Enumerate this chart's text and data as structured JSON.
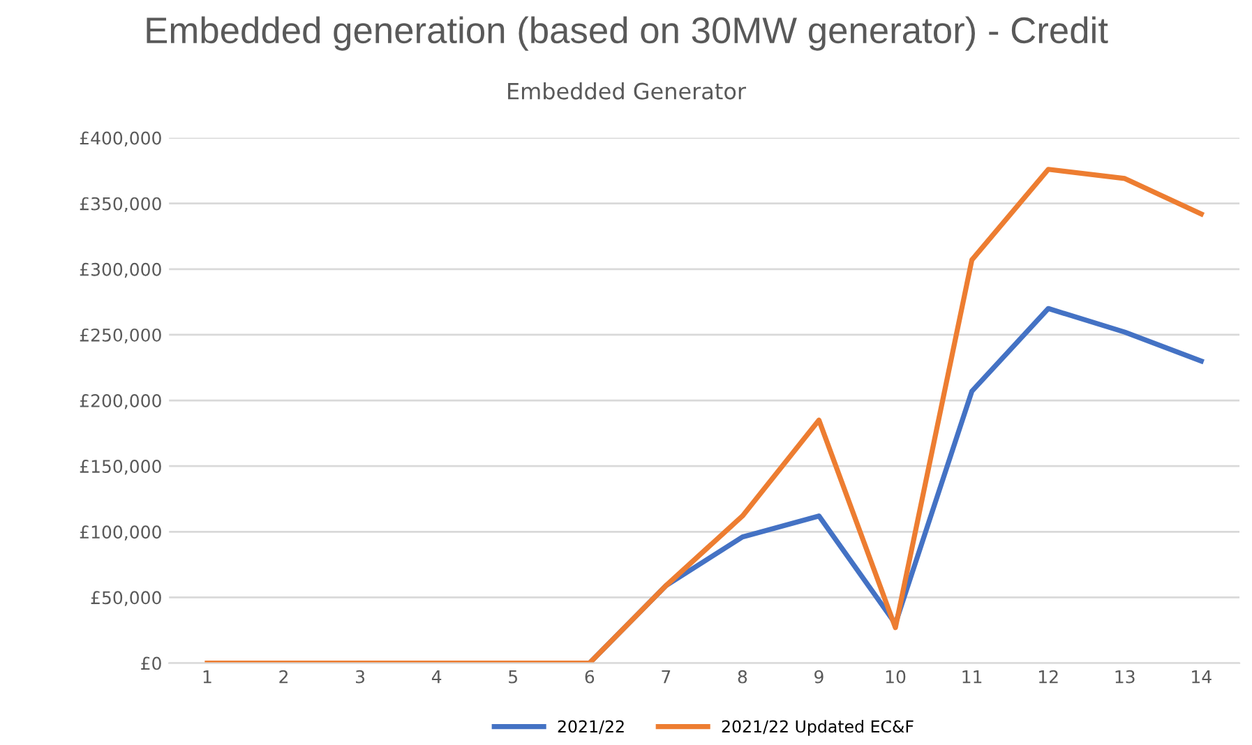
{
  "chart_data": {
    "type": "line",
    "title": "Embedded generation (based on 30MW generator) - Credit",
    "subtitle": "Embedded Generator",
    "categories": [
      "1",
      "2",
      "3",
      "4",
      "5",
      "6",
      "7",
      "8",
      "9",
      "10",
      "11",
      "12",
      "13",
      "14"
    ],
    "series": [
      {
        "name": "2021/22",
        "color": "#4472c4",
        "values": [
          null,
          null,
          null,
          null,
          null,
          0,
          59000,
          96000,
          112000,
          30000,
          207000,
          270000,
          252000,
          230000
        ]
      },
      {
        "name": "2021/22 Updated EC&F",
        "color": "#ed7d31",
        "values": [
          0,
          0,
          0,
          0,
          0,
          0,
          59000,
          112000,
          185000,
          27000,
          307000,
          376000,
          369000,
          342000
        ]
      }
    ],
    "ylim": [
      0,
      400000
    ],
    "yticks": [
      {
        "value": 0,
        "label": "£0"
      },
      {
        "value": 50000,
        "label": "£50,000"
      },
      {
        "value": 100000,
        "label": "£100,000"
      },
      {
        "value": 150000,
        "label": "£150,000"
      },
      {
        "value": 200000,
        "label": "£200,000"
      },
      {
        "value": 250000,
        "label": "£250,000"
      },
      {
        "value": 300000,
        "label": "£300,000"
      },
      {
        "value": 350000,
        "label": "£350,000"
      },
      {
        "value": 400000,
        "label": "£400,000"
      }
    ],
    "grid": "y",
    "legend": "bottom",
    "marker": "none",
    "line_style": "solid"
  }
}
